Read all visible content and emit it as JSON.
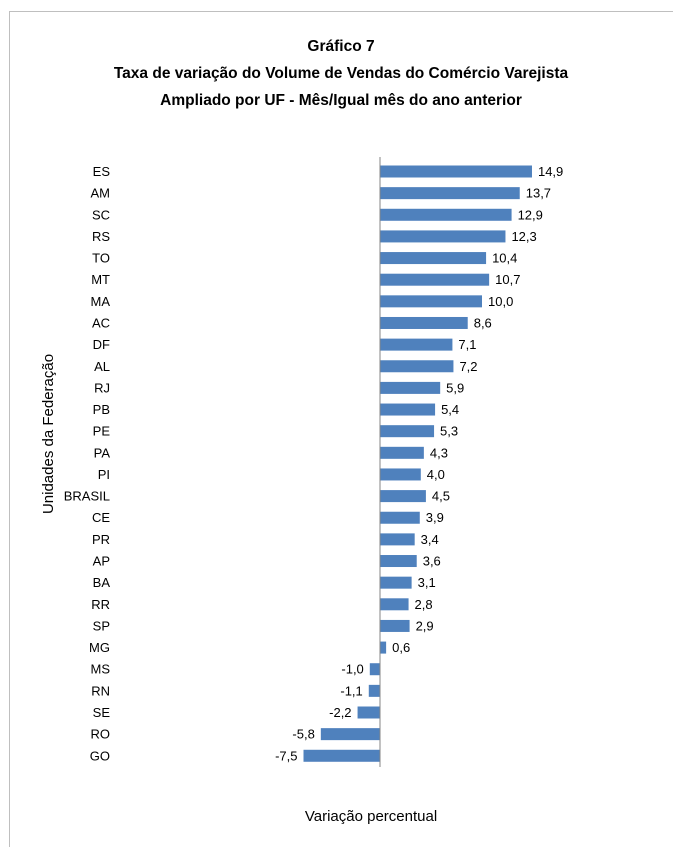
{
  "chart_data": {
    "type": "bar",
    "orientation": "horizontal",
    "title_line1": "Gráfico 7",
    "title_line2": "Taxa de variação do Volume de Vendas do Comércio Varejista",
    "title_line3": "Ampliado por UF - Mês/Igual mês do ano anterior",
    "xlabel": "Variação percentual",
    "ylabel": "Unidades da Federação",
    "categories": [
      "ES",
      "AM",
      "SC",
      "RS",
      "TO",
      "MT",
      "MA",
      "AC",
      "DF",
      "AL",
      "RJ",
      "PB",
      "PE",
      "PA",
      "PI",
      "BRASIL",
      "CE",
      "PR",
      "AP",
      "BA",
      "RR",
      "SP",
      "MG",
      "MS",
      "RN",
      "SE",
      "RO",
      "GO"
    ],
    "values": [
      14.9,
      13.7,
      12.9,
      12.3,
      10.4,
      10.7,
      10.0,
      8.6,
      7.1,
      7.2,
      5.9,
      5.4,
      5.3,
      4.3,
      4.0,
      4.5,
      3.9,
      3.4,
      3.6,
      3.1,
      2.8,
      2.9,
      0.6,
      -1.0,
      -1.1,
      -2.2,
      -5.8,
      -7.5
    ],
    "value_labels": [
      "14,9",
      "13,7",
      "12,9",
      "12,3",
      "10,4",
      "10,7",
      "10,0",
      "8,6",
      "7,1",
      "7,2",
      "5,9",
      "5,4",
      "5,3",
      "4,3",
      "4,0",
      "4,5",
      "3,9",
      "3,4",
      "3,6",
      "3,1",
      "2,8",
      "2,9",
      "0,6",
      "-1,0",
      "-1,1",
      "-2,2",
      "-5,8",
      "-7,5"
    ],
    "xlim": [
      -7.5,
      14.9
    ],
    "grid": false,
    "legend": "none",
    "bar_color": "#4f81bd"
  }
}
